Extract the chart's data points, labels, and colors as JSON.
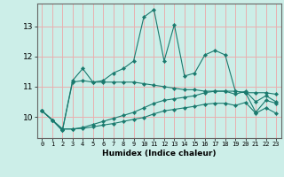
{
  "title": "",
  "xlabel": "Humidex (Indice chaleur)",
  "ylabel": "",
  "background_color": "#cceee8",
  "grid_color": "#e8b0b0",
  "line_color": "#1a7a6e",
  "x_values": [
    0,
    1,
    2,
    3,
    4,
    5,
    6,
    7,
    8,
    9,
    10,
    11,
    12,
    13,
    14,
    15,
    16,
    17,
    18,
    19,
    20,
    21,
    22,
    23
  ],
  "line1_y": [
    10.2,
    9.9,
    9.55,
    11.2,
    11.6,
    11.15,
    11.2,
    11.45,
    11.6,
    11.85,
    13.3,
    13.55,
    11.85,
    13.05,
    11.35,
    11.45,
    12.05,
    12.2,
    12.05,
    10.85,
    10.8,
    10.15,
    10.55,
    10.45
  ],
  "line2_y": [
    10.2,
    9.9,
    9.55,
    11.15,
    11.2,
    11.15,
    11.15,
    11.15,
    11.15,
    11.15,
    11.1,
    11.05,
    11.0,
    10.95,
    10.9,
    10.9,
    10.85,
    10.85,
    10.85,
    10.85,
    10.8,
    10.8,
    10.8,
    10.75
  ],
  "line3_y": [
    10.2,
    9.9,
    9.6,
    9.6,
    9.65,
    9.75,
    9.85,
    9.95,
    10.05,
    10.15,
    10.3,
    10.45,
    10.55,
    10.6,
    10.65,
    10.7,
    10.8,
    10.85,
    10.85,
    10.75,
    10.85,
    10.5,
    10.7,
    10.5
  ],
  "line4_y": [
    10.2,
    9.9,
    9.6,
    9.6,
    9.62,
    9.67,
    9.73,
    9.78,
    9.85,
    9.92,
    9.98,
    10.1,
    10.2,
    10.25,
    10.3,
    10.35,
    10.42,
    10.45,
    10.45,
    10.38,
    10.48,
    10.12,
    10.3,
    10.12
  ],
  "ylim": [
    9.3,
    13.75
  ],
  "xlim": [
    -0.5,
    23.5
  ],
  "yticks": [
    10,
    11,
    12,
    13
  ],
  "xticks": [
    0,
    1,
    2,
    3,
    4,
    5,
    6,
    7,
    8,
    9,
    10,
    11,
    12,
    13,
    14,
    15,
    16,
    17,
    18,
    19,
    20,
    21,
    22,
    23
  ]
}
